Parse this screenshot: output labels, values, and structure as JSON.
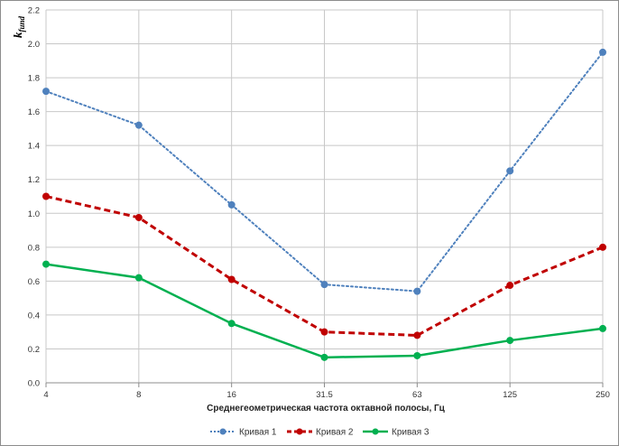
{
  "chart_data": {
    "type": "line",
    "categories": [
      "4",
      "8",
      "16",
      "31.5",
      "63",
      "125",
      "250"
    ],
    "series": [
      {
        "name": "Кривая 1",
        "values": [
          1.72,
          1.52,
          1.05,
          0.58,
          0.54,
          1.25,
          1.95
        ],
        "color": "#4f81bd",
        "dash": "dotted"
      },
      {
        "name": "Кривая 2",
        "values": [
          1.1,
          0.975,
          0.61,
          0.3,
          0.28,
          0.575,
          0.8
        ],
        "color": "#c00000",
        "dash": "dashed"
      },
      {
        "name": "Кривая 3",
        "values": [
          0.7,
          0.62,
          0.35,
          0.15,
          0.16,
          0.25,
          0.32
        ],
        "color": "#00b050",
        "dash": "solid"
      }
    ],
    "xlabel": "Среднегеометрическая частота октавной полосы, Гц",
    "ylabel": "kfund",
    "ylim": [
      0,
      2.2
    ],
    "yticks": [
      "0.0",
      "0.2",
      "0.4",
      "0.6",
      "0.8",
      "1.0",
      "1.2",
      "1.4",
      "1.6",
      "1.8",
      "2.0",
      "2.2"
    ],
    "grid": true,
    "legend": "bottom"
  }
}
